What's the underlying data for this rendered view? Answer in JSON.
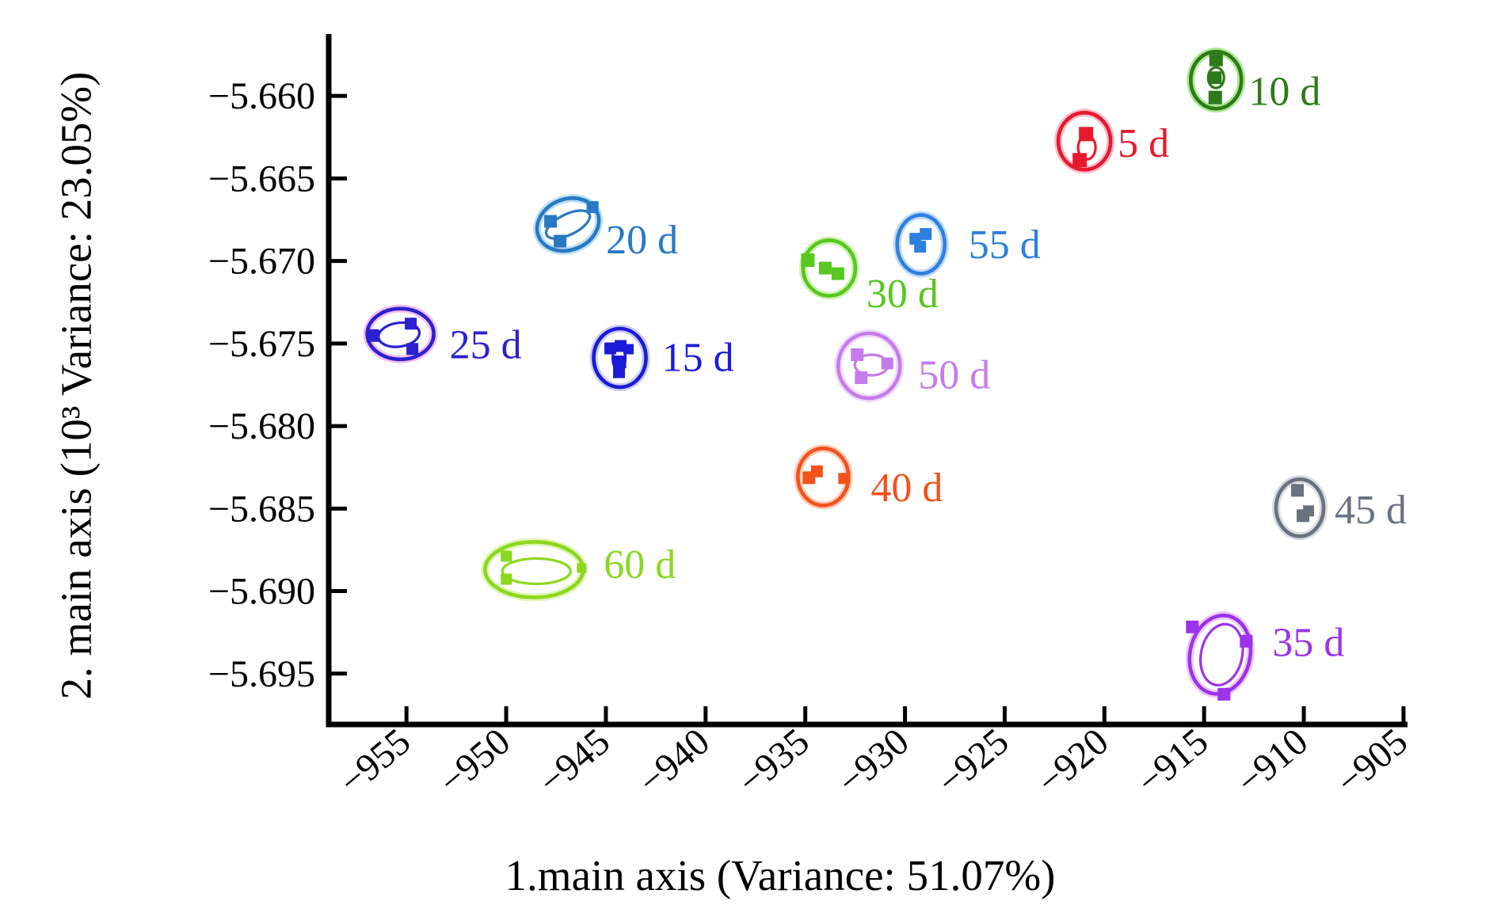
{
  "figure": {
    "xlabel": "1.main axis (Variance: 51.07%)",
    "ylabel": "2. main axis (10³ Variance: 23.05%)"
  },
  "chart_data": {
    "type": "scatter",
    "title": "",
    "xlabel": "1.main axis (Variance: 51.07%)",
    "ylabel": "2. main axis (10³ Variance: 23.05%)",
    "xlim": [
      -958.9,
      -904.8
    ],
    "ylim": [
      -5.69808,
      -5.65625
    ],
    "x_ticks": [
      -955,
      -950,
      -945,
      -940,
      -935,
      -930,
      -925,
      -920,
      -915,
      -910,
      -905
    ],
    "y_ticks": [
      -5.66,
      -5.665,
      -5.67,
      -5.675,
      -5.68,
      -5.685,
      -5.69,
      -5.695
    ],
    "grid": false,
    "legend_position": "labels beside each cluster",
    "clusters": [
      {
        "label": "5 d",
        "x": -921.0,
        "y": -5.66274,
        "color": "#e8192c",
        "halo": "#f7a6bb",
        "outer": [
          33,
          36,
          0
        ],
        "inner": [
          11,
          15,
          0,
          3,
          8
        ],
        "points": [
          [
            2,
            -9,
            18
          ],
          [
            -6,
            24,
            18
          ]
        ],
        "label_dx": 42,
        "label_dy": 3
      },
      {
        "label": "10 d",
        "x": -914.4,
        "y": -5.65904,
        "color": "#2d7a1a",
        "halo": "#94e06e",
        "outer": [
          32,
          36,
          0
        ],
        "inner": [
          10,
          13,
          0,
          0,
          -3
        ],
        "points": [
          [
            0,
            -26,
            17
          ],
          [
            -1,
            -3,
            16
          ],
          [
            -1,
            22,
            17
          ]
        ],
        "label_dx": 41,
        "label_dy": 15
      },
      {
        "label": "15 d",
        "x": -944.3,
        "y": -5.67587,
        "color": "#1b1bd6",
        "halo": "#b9b9f2",
        "outer": [
          33,
          37,
          0
        ],
        "inner": [
          8,
          16,
          0,
          -1,
          0
        ],
        "points": [
          [
            -12,
            -12,
            15
          ],
          [
            1,
            -15,
            15
          ],
          [
            11,
            -11,
            13
          ],
          [
            0,
            5,
            16
          ],
          [
            -1,
            18,
            15
          ]
        ],
        "label_dx": 53,
        "label_dy": 0
      },
      {
        "label": "20 d",
        "x": -946.9,
        "y": -5.66779,
        "color": "#2779c4",
        "halo": "#a6d2ef",
        "outer": [
          40,
          32,
          -22
        ],
        "inner": [
          30,
          13,
          -26,
          0,
          0
        ],
        "points": [
          [
            -22,
            -4,
            16
          ],
          [
            -10,
            21,
            16
          ],
          [
            31,
            -22,
            15
          ]
        ],
        "label_dx": 48,
        "label_dy": 20
      },
      {
        "label": "25 d",
        "x": -955.3,
        "y": -5.67442,
        "color": "#2b21cf",
        "halo": "#f2a8ec",
        "outer": [
          42,
          32,
          0
        ],
        "inner": [
          26,
          15,
          -8,
          -2,
          1
        ],
        "points": [
          [
            -35,
            2,
            16
          ],
          [
            13,
            -13,
            15
          ],
          [
            15,
            19,
            15
          ]
        ],
        "label_dx": 62,
        "label_dy": 14
      },
      {
        "label": "30 d",
        "x": -933.8,
        "y": -5.67043,
        "color": "#56c81f",
        "halo": "#c0ef9a",
        "outer": [
          33,
          35,
          0
        ],
        "inner": null,
        "points": [
          [
            -27,
            -10,
            17
          ],
          [
            -5,
            0,
            16
          ],
          [
            11,
            7,
            16
          ]
        ],
        "label_dx": 47,
        "label_dy": 33
      },
      {
        "label": "35 d",
        "x": -914.2,
        "y": -5.69385,
        "color": "#9c33ea",
        "halo": "#e3b5f7",
        "outer": [
          38,
          50,
          12
        ],
        "inner": [
          26,
          39,
          12,
          2,
          0
        ],
        "points": [
          [
            -35,
            -35,
            16
          ],
          [
            33,
            -17,
            16
          ],
          [
            5,
            50,
            16
          ]
        ],
        "label_dx": 66,
        "label_dy": -15
      },
      {
        "label": "40 d",
        "x": -934.1,
        "y": -5.68308,
        "color": "#f4511c",
        "halo": "#f9b99e",
        "outer": [
          32,
          36,
          0
        ],
        "inner": null,
        "points": [
          [
            -18,
            1,
            16
          ],
          [
            -8,
            -7,
            15
          ],
          [
            26,
            2,
            14
          ]
        ],
        "label_dx": 60,
        "label_dy": 14
      },
      {
        "label": "45 d",
        "x": -910.2,
        "y": -5.68495,
        "color": "#6a7280",
        "halo": "#c9cdd4",
        "outer": [
          30,
          36,
          0
        ],
        "inner": null,
        "points": [
          [
            -3,
            -22,
            16
          ],
          [
            4,
            10,
            16
          ],
          [
            11,
            4,
            14
          ]
        ],
        "label_dx": 44,
        "label_dy": 3
      },
      {
        "label": "50 d",
        "x": -931.8,
        "y": -5.67635,
        "color": "#c57bed",
        "halo": "#e9cdf8",
        "outer": [
          39,
          41,
          0
        ],
        "inner": [
          21,
          13,
          0,
          3,
          -1
        ],
        "points": [
          [
            -15,
            -14,
            16
          ],
          [
            -10,
            15,
            16
          ],
          [
            23,
            -3,
            15
          ]
        ],
        "label_dx": 62,
        "label_dy": 12
      },
      {
        "label": "55 d",
        "x": -929.2,
        "y": -5.66899,
        "color": "#2e7fe0",
        "halo": "#aacdf2",
        "outer": [
          30,
          37,
          0
        ],
        "inner": null,
        "points": [
          [
            -7,
            -7,
            15
          ],
          [
            6,
            -13,
            15
          ],
          [
            -1,
            3,
            15
          ]
        ],
        "label_dx": 60,
        "label_dy": 1
      },
      {
        "label": "60 d",
        "x": -948.6,
        "y": -5.6887,
        "color": "#8cd81e",
        "halo": "#d6f2a2",
        "outer": [
          62,
          35,
          0
        ],
        "inner": [
          43,
          16,
          0,
          3,
          2
        ],
        "points": [
          [
            -35,
            -17,
            14
          ],
          [
            -35,
            12,
            14
          ],
          [
            60,
            -2,
            12
          ]
        ],
        "label_dx": 88,
        "label_dy": -6
      }
    ]
  }
}
